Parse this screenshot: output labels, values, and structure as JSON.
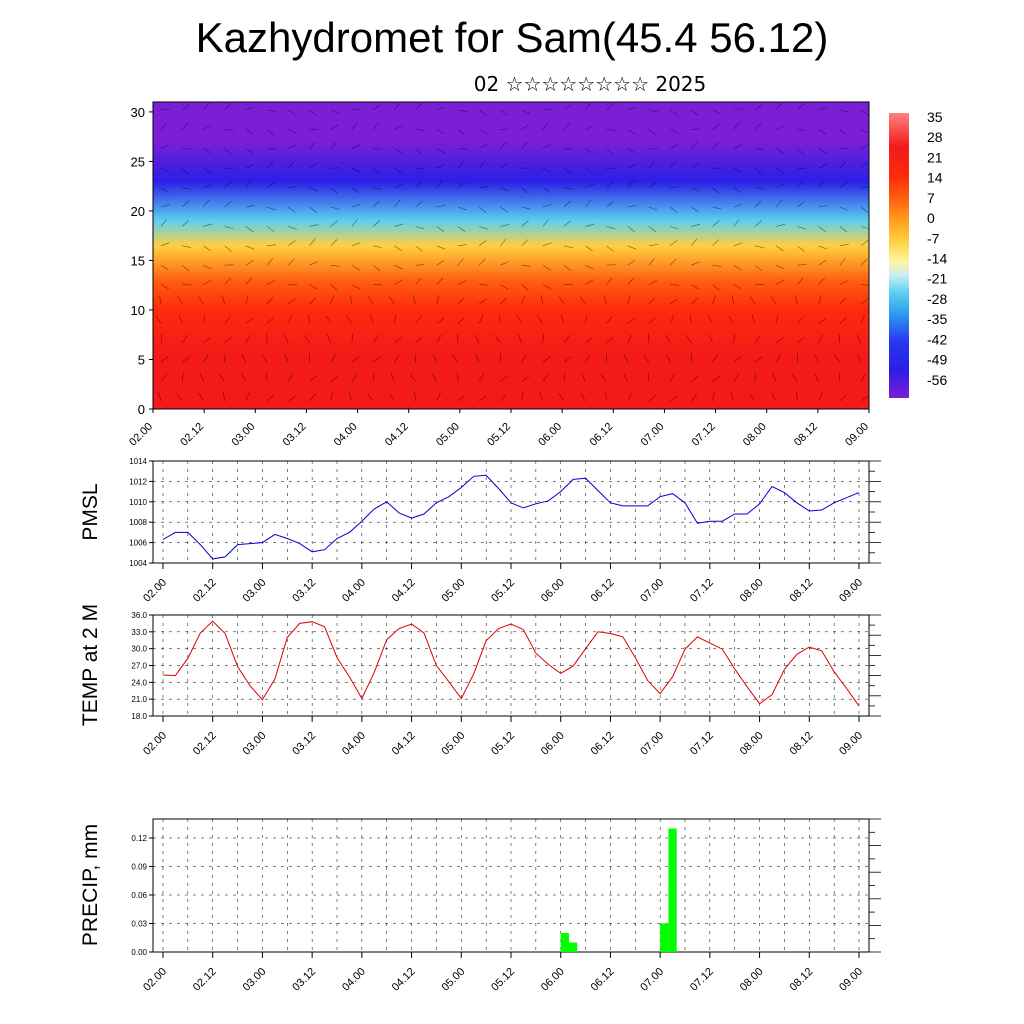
{
  "header": {
    "title": "Kazhydromet for Sam(45.4 56.12)",
    "subtitle": "02 ☆☆☆☆☆☆☆☆ 2025"
  },
  "chart_data": [
    {
      "type": "heatmap",
      "xlabel": "",
      "ylabel": "",
      "ylim": [
        0,
        31
      ],
      "yticks": [
        "0",
        "5",
        "10",
        "15",
        "20",
        "25",
        "30"
      ],
      "xticks": [
        "02.00",
        "02.12",
        "03.00",
        "03.12",
        "04.00",
        "04.12",
        "05.00",
        "05.12",
        "06.00",
        "06.12",
        "07.00",
        "07.12",
        "08.00",
        "08.12",
        "09.00"
      ],
      "colorbar": {
        "labels": [
          "35",
          "28",
          "21",
          "14",
          "7",
          "0",
          "-7",
          "-14",
          "-21",
          "-28",
          "-35",
          "-42",
          "-49",
          "-56"
        ],
        "range": [
          -63,
          35
        ]
      },
      "overlay": "wind barbs",
      "description_levels": [
        {
          "height": 0,
          "value": 35
        },
        {
          "height": 5,
          "value": 30
        },
        {
          "height": 10,
          "value": 21
        },
        {
          "height": 13,
          "value": 7
        },
        {
          "height": 16.5,
          "value": -7
        },
        {
          "height": 19,
          "value": -25
        },
        {
          "height": 23,
          "value": -50
        },
        {
          "height": 27,
          "value": -60
        },
        {
          "height": 31,
          "value": -63
        }
      ]
    },
    {
      "type": "line",
      "ylabel": "PMSL",
      "ylim": [
        1004,
        1014
      ],
      "yticks": [
        "1004",
        "1006",
        "1008",
        "1010",
        "1012",
        "1014"
      ],
      "xticks": [
        "02.00",
        "02.12",
        "03.00",
        "03.12",
        "04.00",
        "04.12",
        "05.00",
        "05.12",
        "06.00",
        "06.12",
        "07.00",
        "07.12",
        "08.00",
        "08.12",
        "09.00"
      ],
      "series": [
        {
          "color": "#0000cc",
          "values": [
            1006.3,
            1007.0,
            1007.0,
            1005.8,
            1004.4,
            1004.6,
            1005.8,
            1005.9,
            1006.0,
            1006.8,
            1006.4,
            1005.9,
            1005.1,
            1005.3,
            1006.4,
            1007.0,
            1008.1,
            1009.3,
            1010.0,
            1008.9,
            1008.4,
            1008.8,
            1009.9,
            1010.5,
            1011.4,
            1012.5,
            1012.6,
            1011.3,
            1009.9,
            1009.4,
            1009.8,
            1010.1,
            1011.0,
            1012.2,
            1012.3,
            1011.1,
            1009.9,
            1009.6,
            1009.6,
            1009.6,
            1010.5,
            1010.8,
            1009.9,
            1007.9,
            1008.1,
            1008.1,
            1008.8,
            1008.8,
            1009.8,
            1011.5,
            1010.9,
            1009.9,
            1009.1,
            1009.2,
            1009.9,
            1010.4,
            1010.9
          ]
        }
      ]
    },
    {
      "type": "line",
      "ylabel": "TEMP at 2 M",
      "ylim": [
        18,
        36
      ],
      "yticks": [
        "18.0",
        "21.0",
        "24.0",
        "27.0",
        "30.0",
        "33.0",
        "36.0"
      ],
      "xticks": [
        "02.00",
        "02.12",
        "03.00",
        "03.12",
        "04.00",
        "04.12",
        "05.00",
        "05.12",
        "06.00",
        "06.12",
        "07.00",
        "07.12",
        "08.00",
        "08.12",
        "09.00"
      ],
      "series": [
        {
          "color": "#dd0000",
          "values": [
            25.3,
            25.2,
            28.3,
            32.8,
            34.9,
            32.7,
            26.8,
            23.4,
            20.9,
            24.6,
            32.0,
            34.5,
            34.8,
            33.9,
            28.4,
            25.0,
            21.1,
            25.8,
            31.6,
            33.6,
            34.4,
            32.8,
            27.0,
            24.1,
            21.1,
            25.5,
            31.4,
            33.6,
            34.4,
            33.4,
            29.2,
            27.2,
            25.6,
            26.9,
            30.0,
            33.0,
            32.7,
            32.1,
            28.4,
            24.3,
            22.0,
            25.0,
            29.9,
            32.1,
            31.0,
            29.9,
            26.4,
            23.2,
            20.2,
            21.8,
            26.3,
            29.0,
            30.3,
            29.6,
            25.9,
            22.9,
            19.8
          ]
        }
      ]
    },
    {
      "type": "bar",
      "ylabel": "PRECIP, mm",
      "ylim": [
        0,
        0.14
      ],
      "yticks": [
        "0.00",
        "0.03",
        "0.06",
        "0.09",
        "0.12"
      ],
      "xticks": [
        "02.00",
        "02.12",
        "03.00",
        "03.12",
        "04.00",
        "04.12",
        "05.00",
        "05.12",
        "06.00",
        "06.12",
        "07.00",
        "07.12",
        "08.00",
        "08.12",
        "09.00"
      ],
      "series": [
        {
          "color": "#00ff00",
          "bars": [
            {
              "x": 48,
              "value": 0.02
            },
            {
              "x": 49,
              "value": 0.01
            },
            {
              "x": 60,
              "value": 0.03
            },
            {
              "x": 61,
              "value": 0.13
            }
          ]
        }
      ],
      "n_steps": 84
    }
  ]
}
